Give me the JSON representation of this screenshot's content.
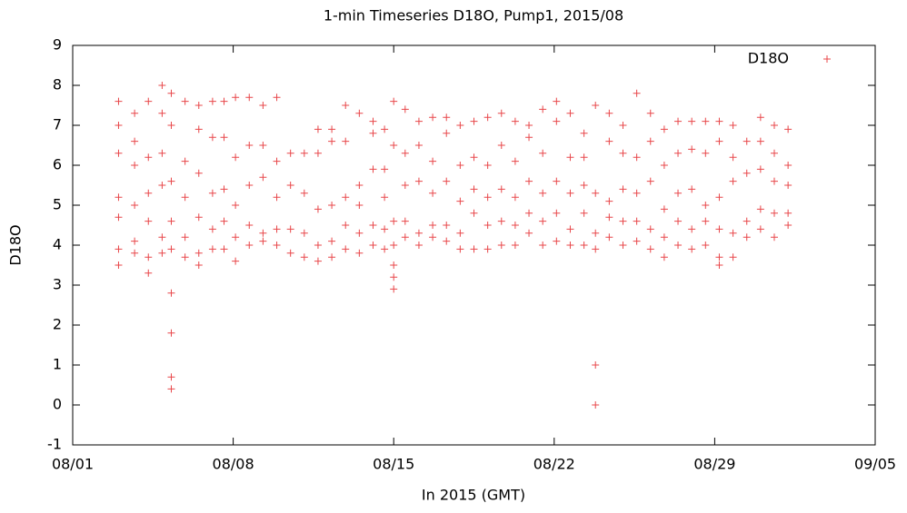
{
  "chart_data": {
    "type": "scatter",
    "title": "1-min Timeseries D18O, Pump1, 2015/08",
    "xlabel": "In 2015 (GMT)",
    "ylabel": "D18O",
    "xlim": [
      1,
      36
    ],
    "xticks": [
      {
        "value": 1,
        "label": "08/01"
      },
      {
        "value": 8,
        "label": "08/08"
      },
      {
        "value": 15,
        "label": "08/15"
      },
      {
        "value": 22,
        "label": "08/22"
      },
      {
        "value": 29,
        "label": "08/29"
      },
      {
        "value": 36,
        "label": "09/05"
      }
    ],
    "ylim": [
      -1,
      9
    ],
    "yticks": [
      -1,
      0,
      1,
      2,
      3,
      4,
      5,
      6,
      7,
      8,
      9
    ],
    "grid": false,
    "legend": "top right",
    "series": [
      {
        "name": "D18O",
        "color": "#e8474a",
        "x": [
          3.0,
          3.0,
          3.0,
          3.0,
          3.0,
          3.0,
          3.0,
          3.7,
          3.7,
          3.7,
          3.7,
          3.7,
          3.7,
          4.3,
          4.3,
          4.3,
          4.3,
          4.3,
          4.3,
          4.9,
          4.9,
          4.9,
          4.9,
          4.9,
          4.9,
          5.3,
          5.3,
          5.3,
          5.3,
          5.3,
          5.3,
          5.3,
          5.3,
          5.3,
          5.9,
          5.9,
          5.9,
          5.9,
          5.9,
          6.5,
          6.5,
          6.5,
          6.5,
          6.5,
          6.5,
          7.1,
          7.1,
          7.1,
          7.1,
          7.1,
          7.6,
          7.6,
          7.6,
          7.6,
          7.6,
          8.1,
          8.1,
          8.1,
          8.1,
          8.1,
          8.7,
          8.7,
          8.7,
          8.7,
          8.7,
          9.3,
          9.3,
          9.3,
          9.3,
          9.3,
          9.9,
          9.9,
          9.9,
          9.9,
          9.9,
          10.5,
          10.5,
          10.5,
          10.5,
          11.1,
          11.1,
          11.1,
          11.1,
          11.7,
          11.7,
          11.7,
          11.7,
          11.7,
          12.3,
          12.3,
          12.3,
          12.3,
          12.3,
          12.9,
          12.9,
          12.9,
          12.9,
          12.9,
          13.5,
          13.5,
          13.5,
          13.5,
          13.5,
          14.1,
          14.1,
          14.1,
          14.1,
          14.1,
          14.6,
          14.6,
          14.6,
          14.6,
          14.6,
          15.0,
          15.0,
          15.0,
          15.0,
          15.0,
          15.0,
          15.0,
          15.5,
          15.5,
          15.5,
          15.5,
          15.5,
          16.1,
          16.1,
          16.1,
          16.1,
          16.1,
          16.7,
          16.7,
          16.7,
          16.7,
          16.7,
          17.3,
          17.3,
          17.3,
          17.3,
          17.3,
          17.9,
          17.9,
          17.9,
          17.9,
          17.9,
          18.5,
          18.5,
          18.5,
          18.5,
          18.5,
          19.1,
          19.1,
          19.1,
          19.1,
          19.1,
          19.7,
          19.7,
          19.7,
          19.7,
          19.7,
          20.3,
          20.3,
          20.3,
          20.3,
          20.3,
          20.9,
          20.9,
          20.9,
          20.9,
          20.9,
          21.5,
          21.5,
          21.5,
          21.5,
          21.5,
          22.1,
          22.1,
          22.1,
          22.1,
          22.1,
          22.7,
          22.7,
          22.7,
          22.7,
          22.7,
          23.3,
          23.3,
          23.3,
          23.3,
          23.3,
          23.8,
          23.8,
          23.8,
          23.8,
          23.8,
          23.8,
          24.4,
          24.4,
          24.4,
          24.4,
          24.4,
          25.0,
          25.0,
          25.0,
          25.0,
          25.0,
          25.6,
          25.6,
          25.6,
          25.6,
          25.6,
          26.2,
          26.2,
          26.2,
          26.2,
          26.2,
          26.8,
          26.8,
          26.8,
          26.8,
          26.8,
          27.4,
          27.4,
          27.4,
          27.4,
          27.4,
          28.0,
          28.0,
          28.0,
          28.0,
          28.0,
          28.6,
          28.6,
          28.6,
          28.6,
          28.6,
          29.2,
          29.2,
          29.2,
          29.2,
          29.2,
          29.2,
          29.8,
          29.8,
          29.8,
          29.8,
          29.8,
          30.4,
          30.4,
          30.4,
          30.4,
          31.0,
          31.0,
          31.0,
          31.0,
          31.0,
          31.6,
          31.6,
          31.6,
          31.6,
          31.6,
          32.2,
          32.2,
          32.2,
          32.2,
          32.2
        ],
        "values": [
          3.5,
          3.9,
          4.7,
          5.2,
          6.3,
          7.0,
          7.6,
          3.8,
          4.1,
          5.0,
          6.0,
          6.6,
          7.3,
          3.3,
          3.7,
          4.6,
          5.3,
          6.2,
          7.6,
          3.8,
          4.2,
          5.5,
          6.3,
          7.3,
          8.0,
          0.4,
          0.7,
          1.8,
          2.8,
          3.9,
          4.6,
          5.6,
          7.0,
          7.8,
          3.7,
          4.2,
          5.2,
          6.1,
          7.6,
          3.5,
          3.8,
          4.7,
          5.8,
          6.9,
          7.5,
          3.9,
          4.4,
          5.3,
          6.7,
          7.6,
          3.9,
          4.6,
          5.4,
          6.7,
          7.6,
          3.6,
          4.2,
          5.0,
          6.2,
          7.7,
          4.0,
          4.5,
          5.5,
          6.5,
          7.7,
          4.1,
          4.3,
          5.7,
          6.5,
          7.5,
          4.0,
          4.4,
          5.2,
          6.1,
          7.7,
          3.8,
          4.4,
          5.5,
          6.3,
          3.7,
          4.3,
          5.3,
          6.3,
          3.6,
          4.0,
          4.9,
          6.3,
          6.9,
          3.7,
          4.1,
          5.0,
          6.6,
          6.9,
          3.9,
          4.5,
          5.2,
          6.6,
          7.5,
          3.8,
          4.3,
          5.0,
          5.5,
          7.3,
          4.0,
          4.5,
          5.9,
          6.8,
          7.1,
          3.9,
          4.4,
          5.2,
          5.9,
          6.9,
          2.9,
          3.2,
          3.5,
          4.0,
          4.6,
          6.5,
          7.6,
          4.2,
          4.6,
          5.5,
          6.3,
          7.4,
          4.0,
          4.3,
          5.6,
          6.5,
          7.1,
          4.2,
          4.5,
          5.3,
          6.1,
          7.2,
          4.1,
          4.5,
          5.6,
          6.8,
          7.2,
          3.9,
          4.3,
          5.1,
          6.0,
          7.0,
          3.9,
          4.8,
          5.4,
          6.2,
          7.1,
          3.9,
          4.5,
          5.2,
          6.0,
          7.2,
          4.0,
          4.6,
          5.4,
          6.5,
          7.3,
          4.0,
          4.5,
          5.2,
          6.1,
          7.1,
          4.3,
          4.8,
          5.6,
          6.7,
          7.0,
          4.0,
          4.6,
          5.3,
          6.3,
          7.4,
          4.1,
          4.8,
          5.6,
          7.1,
          7.6,
          4.0,
          4.4,
          5.3,
          6.2,
          7.3,
          4.0,
          4.8,
          5.5,
          6.2,
          6.8,
          0.0,
          1.0,
          3.9,
          4.3,
          5.3,
          7.5,
          4.2,
          4.7,
          5.1,
          6.6,
          7.3,
          4.0,
          4.6,
          5.4,
          6.3,
          7.0,
          4.1,
          4.6,
          5.3,
          6.2,
          7.8,
          3.9,
          4.4,
          5.6,
          6.6,
          7.3,
          3.7,
          4.2,
          4.9,
          6.0,
          6.9,
          4.0,
          4.6,
          5.3,
          6.3,
          7.1,
          3.9,
          4.4,
          5.4,
          6.4,
          7.1,
          4.0,
          4.6,
          5.0,
          6.3,
          7.1,
          3.5,
          3.7,
          4.4,
          5.2,
          6.6,
          7.1,
          3.7,
          4.3,
          5.6,
          6.2,
          7.0,
          4.2,
          4.6,
          5.8,
          6.6,
          4.4,
          4.9,
          5.9,
          6.6,
          7.2,
          4.2,
          4.8,
          5.6,
          6.3,
          7.0,
          4.5,
          4.8,
          5.5,
          6.0,
          6.9
        ]
      }
    ]
  }
}
